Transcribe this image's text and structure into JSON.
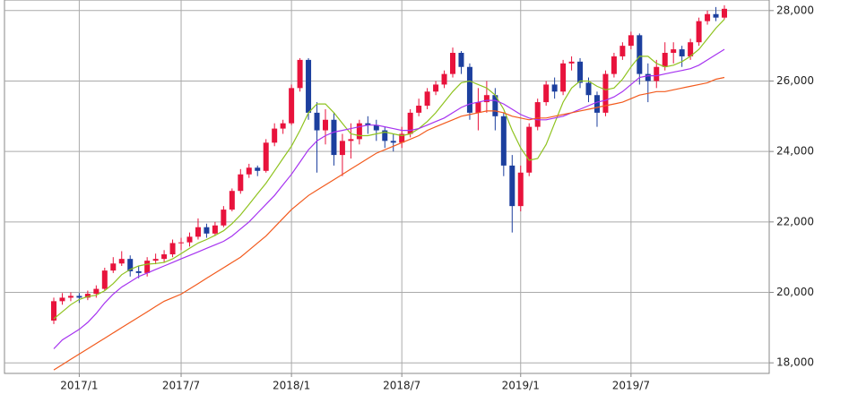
{
  "chart_data": {
    "type": "candlestick",
    "categories": [
      null,
      null,
      null,
      "2017/1",
      null,
      null,
      null,
      null,
      null,
      null,
      null,
      null,
      null,
      null,
      null,
      "2017/7",
      null,
      null,
      null,
      null,
      null,
      null,
      null,
      null,
      null,
      null,
      null,
      null,
      "2018/1",
      null,
      null,
      null,
      null,
      null,
      null,
      null,
      null,
      null,
      null,
      null,
      null,
      "2018/7",
      null,
      null,
      null,
      null,
      null,
      null,
      null,
      null,
      null,
      null,
      null,
      null,
      null,
      "2019/1",
      null,
      null,
      null,
      null,
      null,
      null,
      null,
      null,
      null,
      null,
      null,
      null,
      "2019/7",
      null,
      null,
      null,
      null,
      null,
      null,
      null,
      null,
      null,
      null,
      null
    ],
    "open": [
      19200,
      19750,
      19850,
      19900,
      19850,
      19960,
      20100,
      20620,
      20820,
      20950,
      20600,
      20550,
      20900,
      20950,
      21080,
      21400,
      21420,
      21580,
      21850,
      21670,
      21900,
      22350,
      22880,
      23350,
      23540,
      23450,
      24250,
      24650,
      24800,
      25800,
      26600,
      25100,
      24600,
      24900,
      23900,
      24300,
      24350,
      24800,
      24750,
      24600,
      24300,
      24250,
      24500,
      25100,
      25300,
      25700,
      25900,
      26200,
      26800,
      26400,
      25100,
      25400,
      25600,
      25000,
      23600,
      22450,
      23400,
      24700,
      25400,
      25900,
      25700,
      26500,
      26550,
      25950,
      25600,
      25100,
      26200,
      26700,
      27000,
      27300,
      26200,
      26000,
      26400,
      26800,
      26900,
      26700,
      27100,
      27700,
      27900,
      27800
    ],
    "high": [
      19850,
      19980,
      20000,
      19980,
      20050,
      20200,
      20700,
      21000,
      21170,
      21050,
      20750,
      21000,
      21100,
      21200,
      21500,
      21550,
      21700,
      22100,
      21950,
      22000,
      22450,
      22950,
      23500,
      23650,
      23600,
      24350,
      24800,
      24900,
      25900,
      26650,
      26650,
      25400,
      25200,
      25100,
      24500,
      24800,
      24900,
      25000,
      24900,
      24700,
      24500,
      24700,
      25200,
      25500,
      25800,
      26000,
      26300,
      26950,
      26850,
      26500,
      25800,
      26000,
      25800,
      25100,
      23900,
      23600,
      24800,
      25500,
      26000,
      26100,
      26600,
      26700,
      26650,
      26100,
      25700,
      26300,
      26800,
      27100,
      27400,
      27350,
      26500,
      26600,
      27100,
      27100,
      27000,
      27200,
      27800,
      28000,
      28100,
      28150
    ],
    "low": [
      19100,
      19650,
      19750,
      19700,
      19780,
      19850,
      20050,
      20550,
      20750,
      20450,
      20400,
      20450,
      20800,
      20850,
      21000,
      21200,
      21300,
      21500,
      21550,
      21600,
      21850,
      22300,
      22800,
      23250,
      23300,
      23400,
      24150,
      24500,
      24750,
      25700,
      24900,
      23400,
      24200,
      23600,
      23300,
      23800,
      24200,
      24500,
      24300,
      24100,
      24000,
      24100,
      24400,
      25000,
      25200,
      25600,
      25800,
      26100,
      26200,
      24900,
      24600,
      25100,
      24600,
      23300,
      21700,
      22300,
      23300,
      24600,
      25300,
      25500,
      25600,
      26300,
      25800,
      25400,
      24700,
      25000,
      26100,
      26600,
      26900,
      25900,
      25400,
      25800,
      26300,
      26500,
      26400,
      26600,
      27000,
      27600,
      27700,
      27750
    ],
    "close": [
      19750,
      19850,
      19900,
      19850,
      19960,
      20100,
      20620,
      20820,
      20950,
      20600,
      20550,
      20900,
      20950,
      21080,
      21400,
      21420,
      21580,
      21850,
      21670,
      21900,
      22350,
      22880,
      23350,
      23540,
      23450,
      24250,
      24650,
      24800,
      25800,
      26600,
      25100,
      24600,
      24900,
      23900,
      24300,
      24350,
      24800,
      24750,
      24600,
      24300,
      24250,
      24500,
      25100,
      25300,
      25700,
      25900,
      26200,
      26800,
      26400,
      25100,
      25400,
      25600,
      25000,
      23600,
      22450,
      23400,
      24700,
      25400,
      25900,
      25700,
      26500,
      26550,
      25950,
      25600,
      25100,
      26200,
      26700,
      27000,
      27300,
      26200,
      26000,
      26400,
      26800,
      26900,
      26700,
      27100,
      27700,
      27900,
      27800,
      28050
    ],
    "up_color": "#e8133c",
    "down_color": "#1c3f9e",
    "lines": [
      {
        "color": "#8fc31f",
        "values": [
          19250,
          19450,
          19650,
          19800,
          19880,
          19920,
          20050,
          20250,
          20500,
          20650,
          20750,
          20800,
          20820,
          20850,
          20950,
          21100,
          21250,
          21400,
          21500,
          21620,
          21750,
          21950,
          22200,
          22500,
          22800,
          23100,
          23450,
          23800,
          24150,
          24600,
          25100,
          25350,
          25350,
          25100,
          24800,
          24500,
          24450,
          24450,
          24500,
          24550,
          24500,
          24450,
          24500,
          24650,
          24850,
          25100,
          25400,
          25700,
          25950,
          26000,
          25900,
          25800,
          25600,
          25200,
          24600,
          24100,
          23750,
          23800,
          24200,
          24800,
          25400,
          25800,
          26000,
          26000,
          25850,
          25750,
          25800,
          26050,
          26400,
          26700,
          26700,
          26500,
          26400,
          26450,
          26550,
          26700,
          26900,
          27200,
          27500,
          27750
        ]
      },
      {
        "color": "#a633f0",
        "values": [
          18400,
          18650,
          18800,
          18950,
          19150,
          19400,
          19700,
          19950,
          20150,
          20300,
          20450,
          20550,
          20650,
          20750,
          20850,
          20950,
          21050,
          21150,
          21250,
          21350,
          21450,
          21600,
          21800,
          22000,
          22250,
          22500,
          22750,
          23050,
          23350,
          23700,
          24050,
          24300,
          24450,
          24550,
          24600,
          24650,
          24700,
          24750,
          24750,
          24700,
          24650,
          24600,
          24600,
          24650,
          24750,
          24850,
          24950,
          25100,
          25250,
          25350,
          25400,
          25450,
          25450,
          25350,
          25200,
          25050,
          24950,
          24900,
          24900,
          24950,
          25000,
          25100,
          25200,
          25300,
          25400,
          25450,
          25550,
          25700,
          25900,
          26100,
          26150,
          26150,
          26200,
          26250,
          26300,
          26350,
          26450,
          26600,
          26750,
          26900
        ]
      },
      {
        "color": "#f25a1d",
        "values": [
          17800,
          17950,
          18100,
          18250,
          18400,
          18550,
          18700,
          18850,
          19000,
          19150,
          19300,
          19450,
          19600,
          19750,
          19850,
          19950,
          20100,
          20250,
          20400,
          20550,
          20700,
          20850,
          21000,
          21200,
          21400,
          21600,
          21850,
          22100,
          22350,
          22550,
          22750,
          22900,
          23050,
          23200,
          23350,
          23500,
          23650,
          23800,
          23950,
          24050,
          24150,
          24250,
          24350,
          24450,
          24600,
          24700,
          24800,
          24900,
          25000,
          25050,
          25100,
          25150,
          25150,
          25100,
          25000,
          24950,
          24900,
          24950,
          24950,
          25000,
          25050,
          25100,
          25150,
          25200,
          25250,
          25300,
          25350,
          25400,
          25500,
          25600,
          25650,
          25700,
          25700,
          25750,
          25800,
          25850,
          25900,
          25950,
          26050,
          26100
        ]
      }
    ],
    "ylim": [
      17700,
      28300
    ],
    "yticks": [
      {
        "value": 18000,
        "label": "18,000"
      },
      {
        "value": 20000,
        "label": "20,000"
      },
      {
        "value": 22000,
        "label": "22,000"
      },
      {
        "value": 24000,
        "label": "24,000"
      },
      {
        "value": 26000,
        "label": "26,000"
      },
      {
        "value": 28000,
        "label": "28,000"
      }
    ],
    "grid": true
  }
}
